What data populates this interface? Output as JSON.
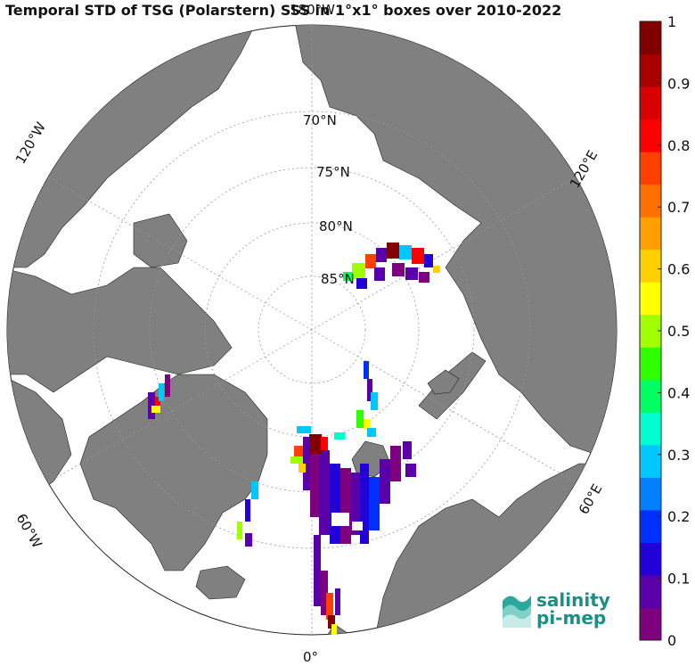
{
  "title": "Temporal STD of TSG (Polarstern) SSS in 1°x1° boxes over 2010-2022",
  "map": {
    "projection": "north-polar-stereographic",
    "center_lat": 90,
    "lat_circles": [
      "70°N",
      "75°N",
      "80°N",
      "85°N"
    ],
    "lon_labels": [
      "180°W",
      "120°E",
      "60°E",
      "0°",
      "60°W",
      "120°W"
    ],
    "land_color": "#808080",
    "ocean_color": "#ffffff"
  },
  "colorbar": {
    "colormap": "jet-like",
    "min": 0,
    "max": 1,
    "ticks": [
      "0",
      "0.1",
      "0.2",
      "0.3",
      "0.4",
      "0.5",
      "0.6",
      "0.7",
      "0.8",
      "0.9",
      "1"
    ],
    "colors": [
      "#7f007f",
      "#5a00a8",
      "#2200d8",
      "#0030ff",
      "#0080ff",
      "#00c8ff",
      "#00ffd0",
      "#00ff60",
      "#30ff00",
      "#a0ff00",
      "#ffff00",
      "#ffd000",
      "#ffa000",
      "#ff7000",
      "#ff4000",
      "#ff0000",
      "#d80000",
      "#a80000",
      "#800000"
    ]
  },
  "logo": {
    "line1": "salinity",
    "line2": "pi-mep"
  }
}
